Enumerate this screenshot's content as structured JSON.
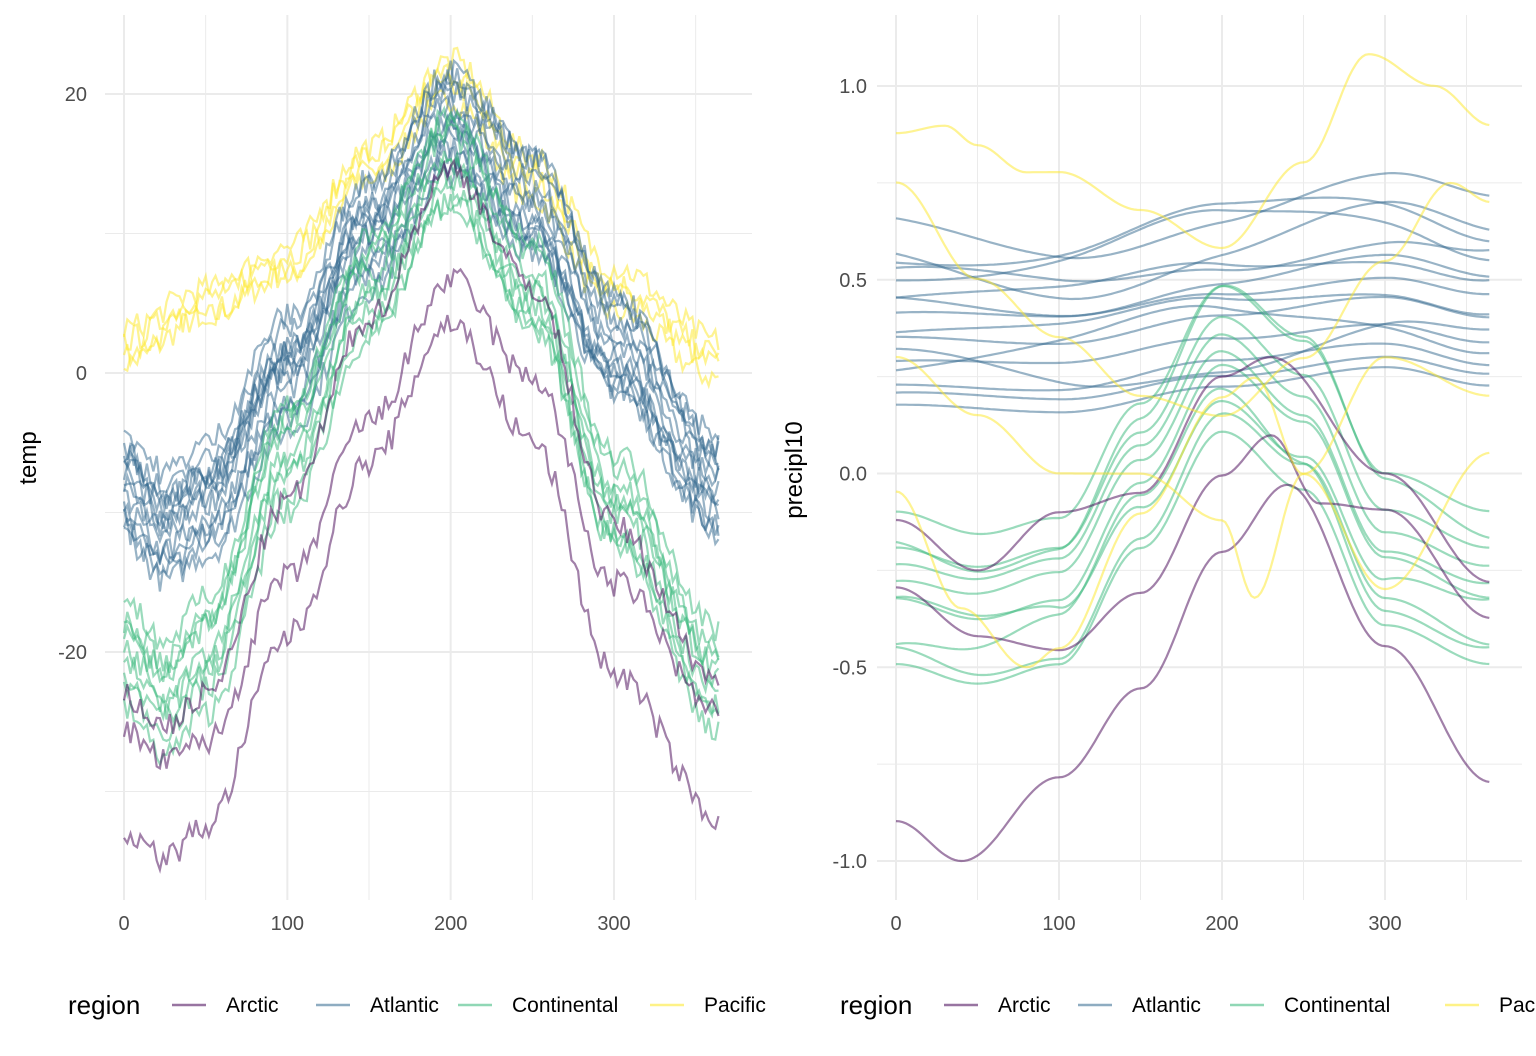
{
  "colors": {
    "Arctic": "#440154",
    "Atlantic": "#31688E",
    "Continental": "#35B779",
    "Pacific": "#FDE725",
    "grid": "#ebebeb"
  },
  "chart_data": [
    {
      "type": "line",
      "ylabel": "temp",
      "xlabel": "",
      "xlim": [
        0,
        365
      ],
      "ylim": [
        -35,
        23
      ],
      "xticks": [
        0,
        100,
        200,
        300
      ],
      "yticks": [
        -20,
        0,
        20
      ],
      "legend": {
        "title": "region",
        "position": "bottom",
        "entries": [
          "Arctic",
          "Atlantic",
          "Continental",
          "Pacific"
        ]
      },
      "series": [
        {
          "region": "Pacific",
          "count": 4,
          "profile": {
            "x": [
              0,
              50,
              100,
              150,
              200,
              250,
              300,
              365
            ],
            "y": [
              2,
              5,
              8,
              15,
              21,
              14,
              6,
              1
            ]
          },
          "spread": 0.8
        },
        {
          "region": "Atlantic",
          "count": 14,
          "profile": {
            "x": [
              0,
              25,
              50,
              100,
              150,
              200,
              250,
              300,
              365
            ],
            "y": [
              -8,
              -11,
              -9,
              0,
              10,
              18,
              12,
              2,
              -8
            ]
          },
          "spread": 2.3
        },
        {
          "region": "Continental",
          "count": 9,
          "profile": {
            "x": [
              0,
              25,
              50,
              100,
              150,
              200,
              250,
              300,
              365
            ],
            "y": [
              -20,
              -23,
              -20,
              -6,
              6,
              15,
              6,
              -9,
              -22
            ]
          },
          "spread": 2.2
        },
        {
          "region": "Arctic",
          "count": 3,
          "profile": {
            "x": [
              0,
              25,
              50,
              100,
              150,
              200,
              250,
              300,
              365
            ],
            "y": [
              -27,
              -29,
              -27,
              -14,
              -2,
              8,
              0,
              -16,
              -26
            ]
          },
          "spread": 3.2
        }
      ]
    },
    {
      "type": "line",
      "ylabel": "precipl10",
      "xlabel": "",
      "xlim": [
        0,
        365
      ],
      "ylim": [
        -1.1,
        1.2
      ],
      "xticks": [
        0,
        100,
        200,
        300
      ],
      "yticks": [
        -1.0,
        -0.5,
        0.0,
        0.5,
        1.0
      ],
      "legend": {
        "title": "region",
        "position": "bottom",
        "entries": [
          "Arctic",
          "Atlantic",
          "Continental",
          "Pacific"
        ]
      },
      "series": [
        {
          "region": "Atlantic",
          "count": 16,
          "profile": {
            "x": [
              0,
              100,
              200,
              300,
              365
            ],
            "y": [
              0.4,
              0.38,
              0.45,
              0.5,
              0.45
            ]
          },
          "spread": 0.14
        },
        {
          "region": "Continental",
          "count": 10,
          "profile": {
            "x": [
              0,
              50,
              100,
              150,
              200,
              250,
              300,
              365
            ],
            "y": [
              -0.3,
              -0.35,
              -0.3,
              0.0,
              0.3,
              0.15,
              -0.2,
              -0.3
            ]
          },
          "spread": 0.12
        },
        {
          "region": "Arctic",
          "count": 1,
          "profile": {
            "x": [
              0,
              40,
              100,
              150,
              200,
              240,
              300,
              365
            ],
            "y": [
              -0.9,
              -1.0,
              -0.78,
              -0.55,
              -0.2,
              -0.03,
              -0.45,
              -0.8
            ]
          },
          "spread": 0.02
        },
        {
          "region": "Arctic",
          "count": 1,
          "profile": {
            "x": [
              0,
              50,
              100,
              150,
              200,
              230,
              260,
              300,
              365
            ],
            "y": [
              -0.3,
              -0.42,
              -0.45,
              -0.3,
              0.0,
              0.1,
              -0.08,
              -0.1,
              -0.38
            ]
          },
          "spread": 0.02
        },
        {
          "region": "Arctic",
          "count": 1,
          "profile": {
            "x": [
              0,
              50,
              100,
              150,
              200,
              230,
              300,
              365
            ],
            "y": [
              -0.12,
              -0.25,
              -0.1,
              -0.05,
              0.25,
              0.3,
              0.0,
              -0.28
            ]
          },
          "spread": 0.02
        },
        {
          "region": "Pacific",
          "count": 1,
          "profile": {
            "x": [
              0,
              30,
              50,
              80,
              100,
              150,
              200,
              250,
              290,
              330,
              365
            ],
            "y": [
              0.88,
              0.9,
              0.85,
              0.78,
              0.78,
              0.68,
              0.58,
              0.8,
              1.08,
              1.0,
              0.9
            ]
          },
          "spread": 0.01
        },
        {
          "region": "Pacific",
          "count": 1,
          "profile": {
            "x": [
              0,
              50,
              100,
              150,
              200,
              250,
              300,
              340,
              365
            ],
            "y": [
              0.75,
              0.5,
              0.35,
              0.2,
              0.15,
              0.3,
              0.55,
              0.75,
              0.7
            ]
          },
          "spread": 0.01
        },
        {
          "region": "Pacific",
          "count": 1,
          "profile": {
            "x": [
              0,
              50,
              100,
              150,
              200,
              220,
              250,
              300,
              365
            ],
            "y": [
              0.3,
              0.15,
              0.0,
              0.0,
              -0.12,
              -0.32,
              0.0,
              0.3,
              0.2
            ]
          },
          "spread": 0.01
        },
        {
          "region": "Pacific",
          "count": 1,
          "profile": {
            "x": [
              0,
              40,
              80,
              100,
              150,
              200,
              220,
              250,
              300,
              365
            ],
            "y": [
              -0.05,
              -0.35,
              -0.5,
              -0.45,
              -0.1,
              0.2,
              0.25,
              0.0,
              -0.3,
              0.05
            ]
          },
          "spread": 0.01
        }
      ]
    }
  ]
}
